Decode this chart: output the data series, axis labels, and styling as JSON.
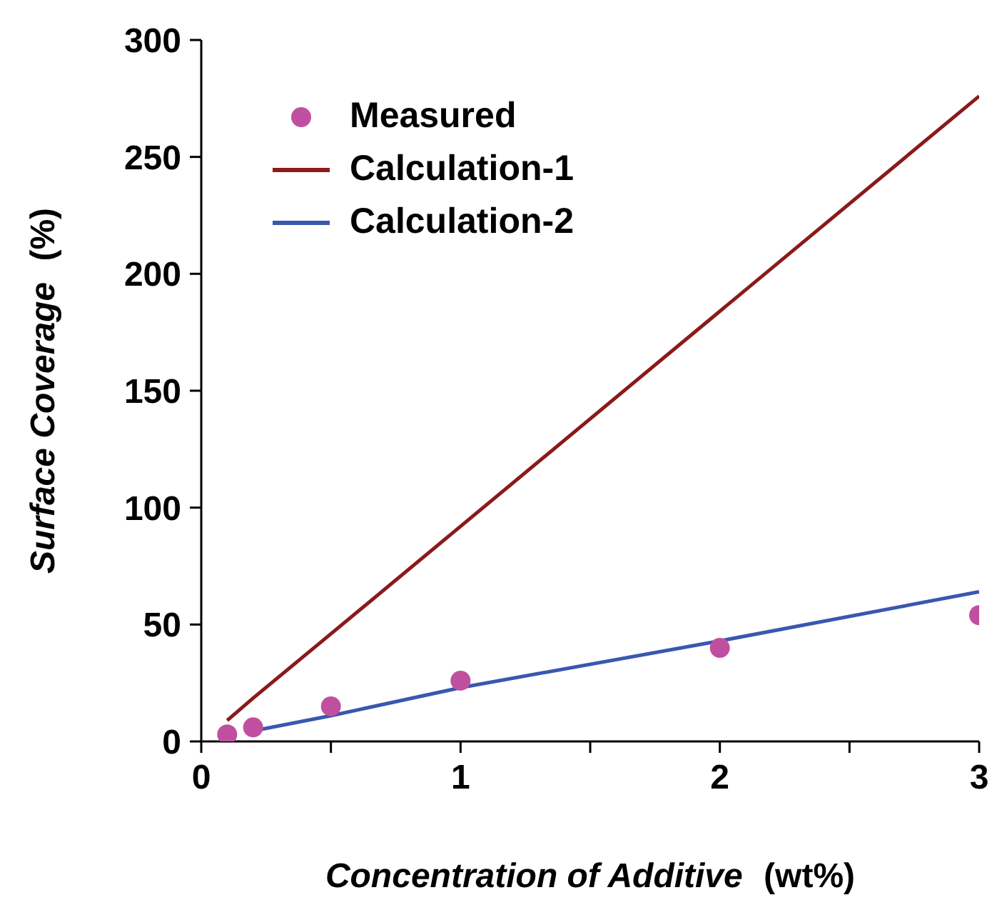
{
  "chart_data": {
    "type": "line",
    "xlabel": "Concentration of Additive (wt%)",
    "ylabel": "Surface Coverage (%)",
    "xlim": [
      0,
      3
    ],
    "xticks": [
      0,
      {
        "value": 0.5,
        "label": null
      },
      1,
      {
        "value": 1.5,
        "label": null
      },
      2,
      {
        "value": 2.5,
        "label": null
      },
      3
    ],
    "ylim": [
      0,
      300
    ],
    "yticks": [
      0,
      50,
      100,
      150,
      200,
      250,
      300
    ],
    "grid": false,
    "legend": "top left",
    "series": [
      {
        "name": "Measured",
        "type": "scatter",
        "marker": "circle",
        "color": "#c0509f",
        "x": [
          0.1,
          0.2,
          0.5,
          1,
          2,
          3
        ],
        "values": [
          3,
          6,
          15,
          26,
          40,
          54
        ]
      },
      {
        "name": "Calculation-1",
        "color": "#8b1a1a",
        "x": [
          0.1,
          0.2,
          0.5,
          1,
          2,
          3
        ],
        "values": [
          9,
          18.5,
          46,
          92,
          184,
          276
        ]
      },
      {
        "name": "Calculation-2",
        "color": "#3a57b0",
        "x": [
          0.2,
          0.5,
          1,
          2,
          3
        ],
        "values": [
          4.5,
          11,
          23,
          43,
          64
        ]
      }
    ]
  }
}
